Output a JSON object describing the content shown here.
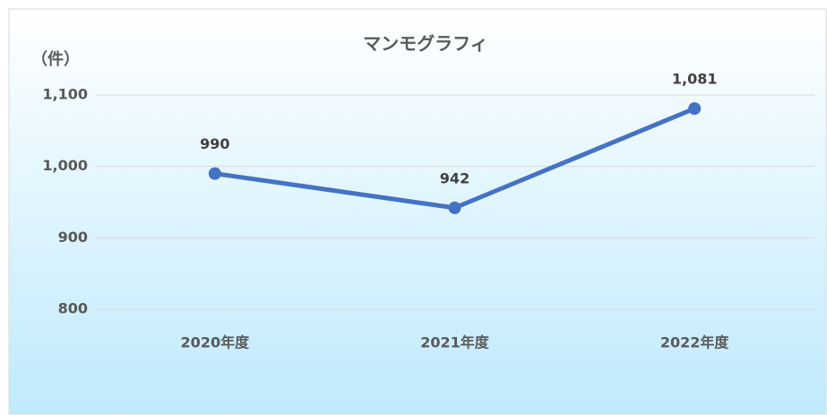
{
  "chart_data": {
    "type": "line",
    "title": "マンモグラフィ",
    "y_label": "（件）",
    "categories": [
      "2020年度",
      "2021年度",
      "2022年度"
    ],
    "series": [
      {
        "name": "マンモグラフィ",
        "color": "#4472c4",
        "values": [
          990,
          942,
          1081
        ],
        "value_labels": [
          "990",
          "942",
          "1,081"
        ]
      }
    ],
    "ylim": [
      800,
      1100
    ],
    "yticks": [
      800,
      900,
      {
        "value": 1000,
        "label": "1,000"
      },
      {
        "value": 1100,
        "label": "1,100"
      }
    ],
    "grid": true
  }
}
